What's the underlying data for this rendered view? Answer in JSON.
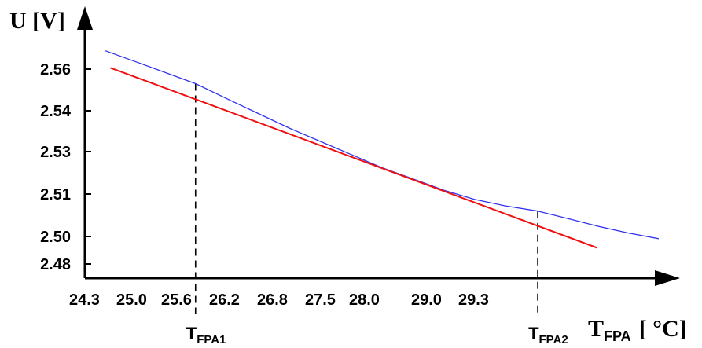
{
  "chart_data": {
    "type": "line",
    "ylabel": "U [V]",
    "xlabel": {
      "main": "T",
      "sub": "FPA",
      "unit": "[ °C]"
    },
    "x_ticks": [
      "24.3",
      "25.0",
      "25.6",
      "26.2",
      "26.8",
      "27.5",
      "28.0",
      "29.0",
      "29.3"
    ],
    "y_ticks": [
      "2.56",
      "2.54",
      "2.53",
      "2.51",
      "2.50",
      "2.48"
    ],
    "series": [
      {
        "color": "#3333ee",
        "x": [
          24.5,
          24.8,
          25.1,
          25.38,
          25.7,
          26.0,
          26.3,
          26.6,
          26.9,
          27.2,
          27.5,
          27.8,
          28.1,
          28.4,
          28.72,
          29.0,
          29.3,
          29.6,
          29.9
        ],
        "y": [
          2.5645,
          2.5603,
          2.556,
          2.552,
          2.546,
          2.5405,
          2.535,
          2.53,
          2.525,
          2.52,
          2.5158,
          2.5115,
          2.508,
          2.5055,
          2.5035,
          2.5008,
          2.4978,
          2.4952,
          2.493
        ]
      },
      {
        "color": "#ee1111",
        "x": [
          24.55,
          29.3
        ],
        "y": [
          2.558,
          2.4895
        ]
      }
    ],
    "markers": [
      {
        "x": 25.38,
        "y": 2.552,
        "label_main": "T",
        "label_sub": "FPA1"
      },
      {
        "x": 28.72,
        "y": 2.5035,
        "label_main": "T",
        "label_sub": "FPA2"
      }
    ],
    "xlim": [
      24.3,
      30.3
    ],
    "ylim": [
      2.478,
      2.568
    ]
  }
}
